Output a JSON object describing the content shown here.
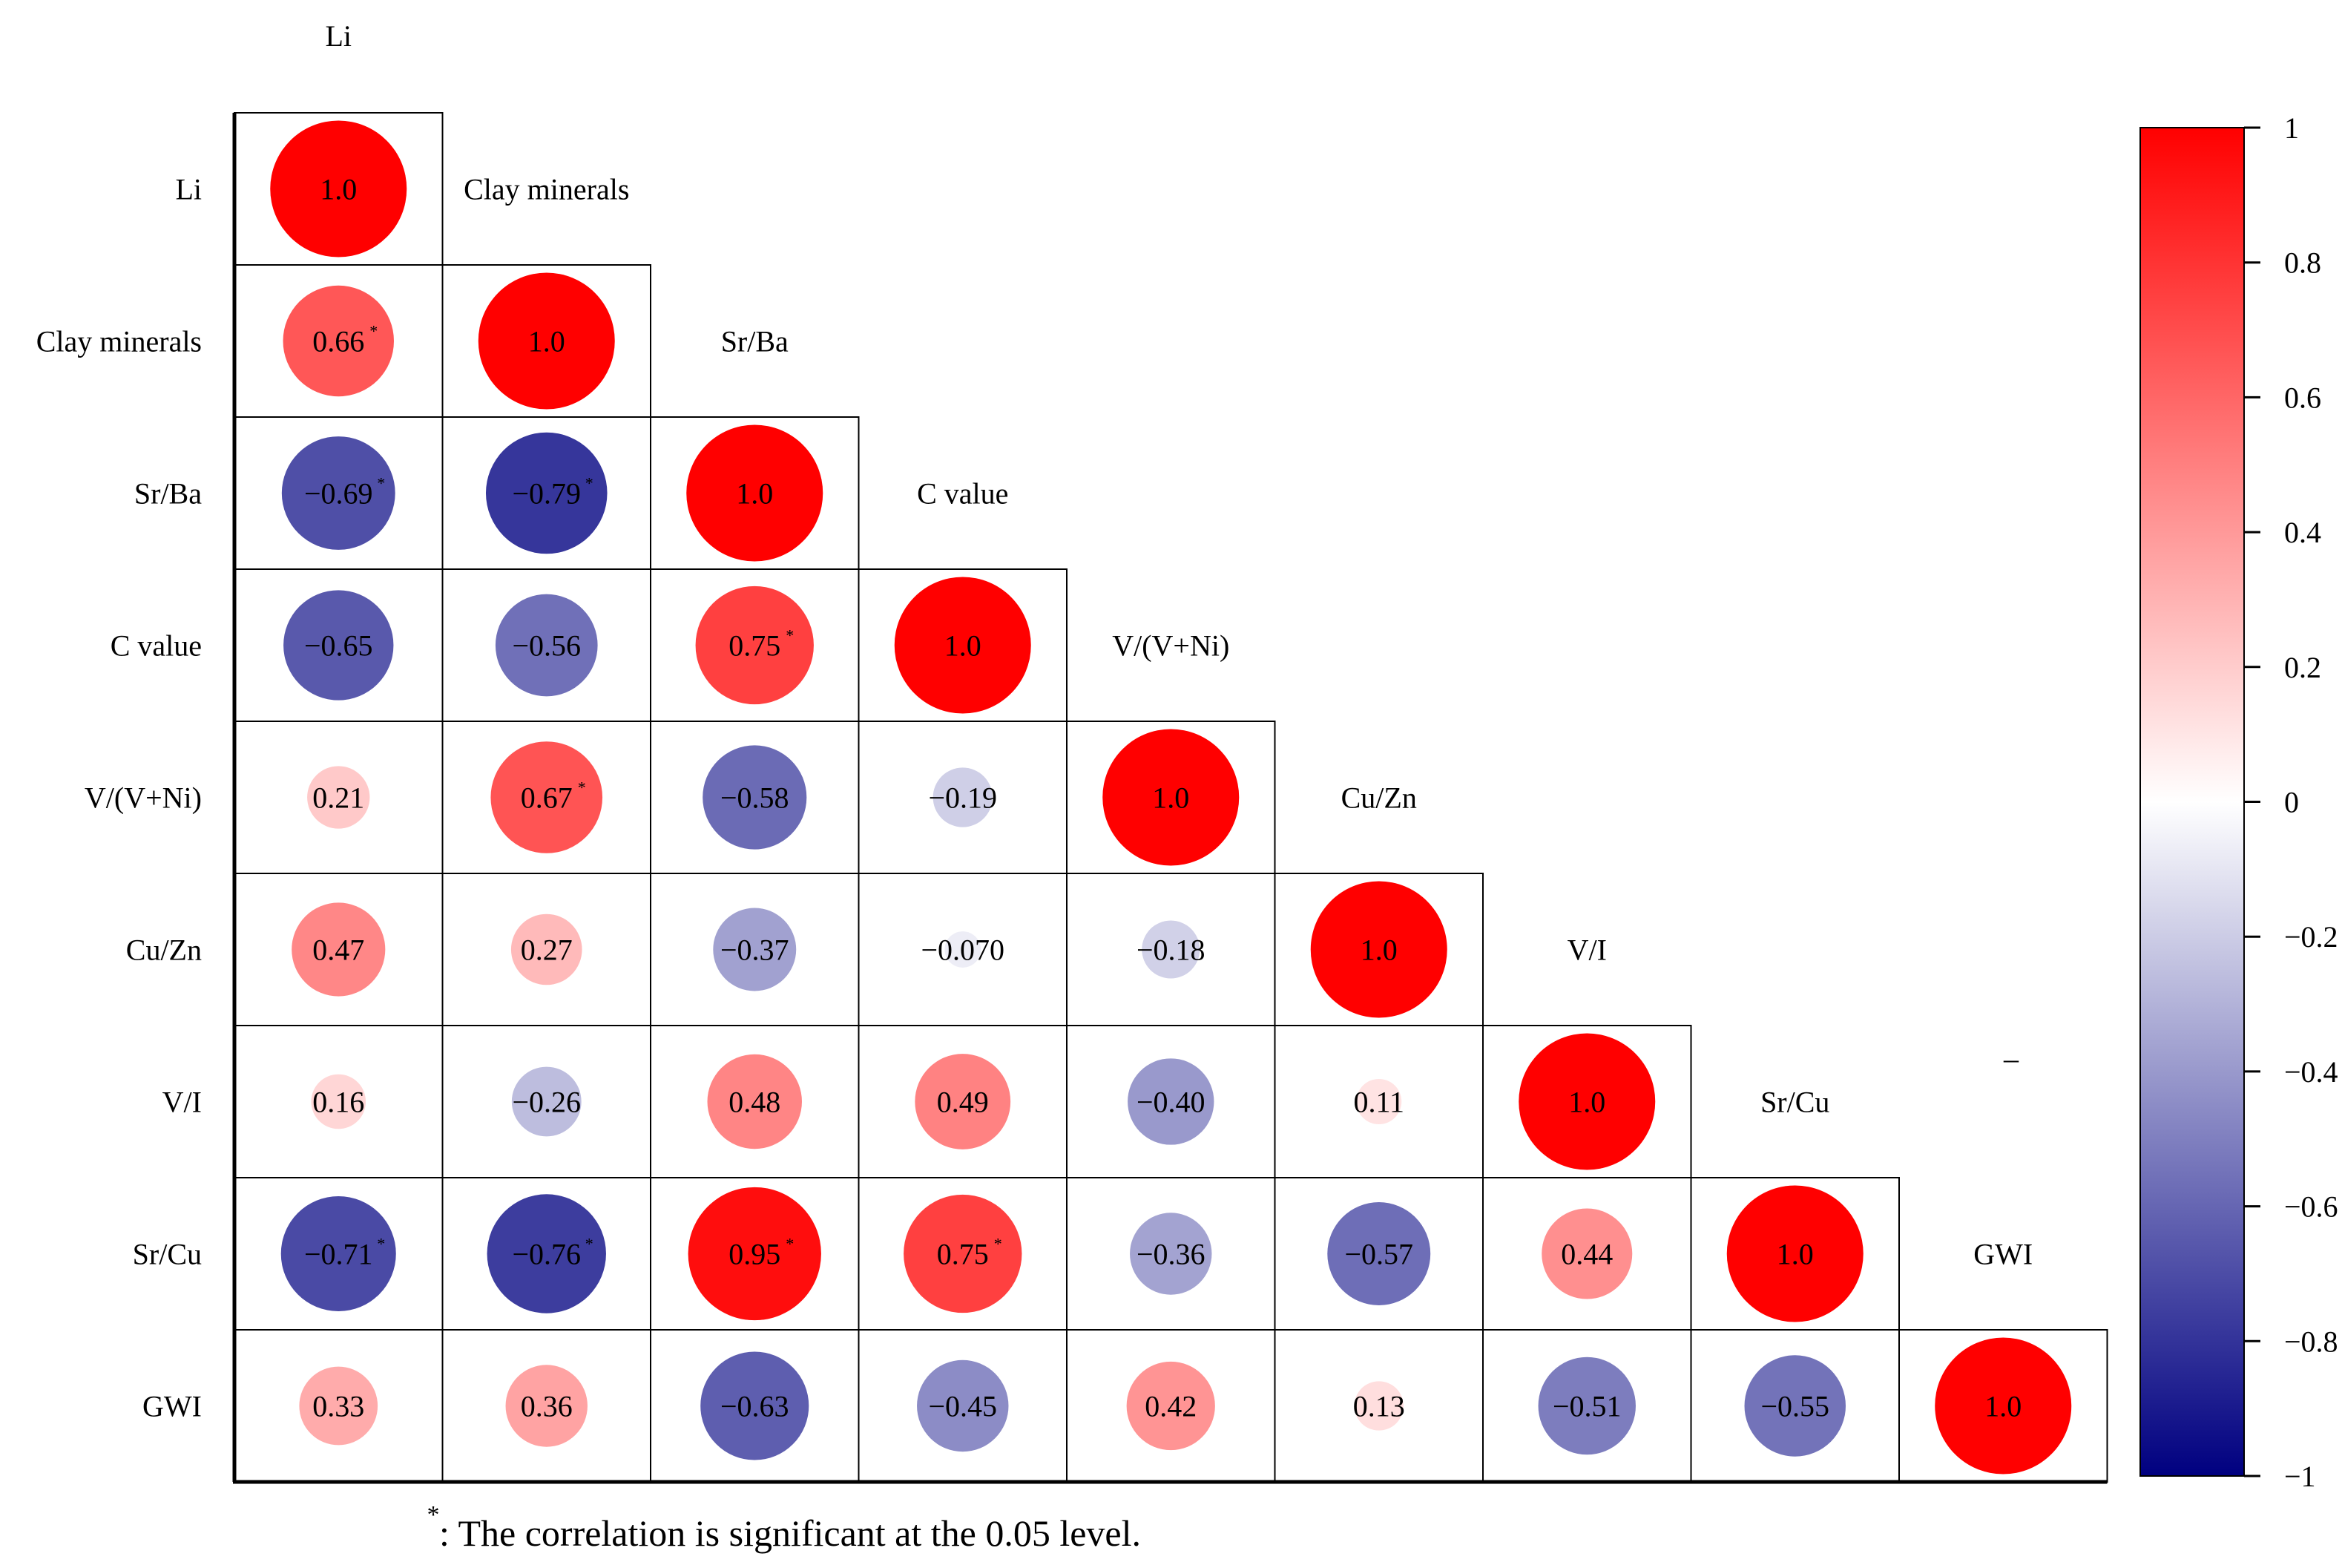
{
  "chart_data": {
    "type": "heatmap",
    "style": "lower-triangular circle correlation matrix",
    "variables": [
      "Li",
      "Clay minerals",
      "Sr/Ba",
      "C value",
      "V/(V+Ni)",
      "Cu/Zn",
      "V/I",
      "Sr/Cu",
      "GWI"
    ],
    "cells": [
      {
        "row": 0,
        "col": 0,
        "value": 1.0,
        "label": "1.0",
        "sig": false
      },
      {
        "row": 1,
        "col": 0,
        "value": 0.66,
        "label": "0.66",
        "sig": true
      },
      {
        "row": 1,
        "col": 1,
        "value": 1.0,
        "label": "1.0",
        "sig": false
      },
      {
        "row": 2,
        "col": 0,
        "value": -0.69,
        "label": "−0.69",
        "sig": true
      },
      {
        "row": 2,
        "col": 1,
        "value": -0.79,
        "label": "−0.79",
        "sig": true
      },
      {
        "row": 2,
        "col": 2,
        "value": 1.0,
        "label": "1.0",
        "sig": false
      },
      {
        "row": 3,
        "col": 0,
        "value": -0.65,
        "label": "−0.65",
        "sig": false
      },
      {
        "row": 3,
        "col": 1,
        "value": -0.56,
        "label": "−0.56",
        "sig": false
      },
      {
        "row": 3,
        "col": 2,
        "value": 0.75,
        "label": "0.75",
        "sig": true
      },
      {
        "row": 3,
        "col": 3,
        "value": 1.0,
        "label": "1.0",
        "sig": false
      },
      {
        "row": 4,
        "col": 0,
        "value": 0.21,
        "label": "0.21",
        "sig": false
      },
      {
        "row": 4,
        "col": 1,
        "value": 0.67,
        "label": "0.67",
        "sig": true
      },
      {
        "row": 4,
        "col": 2,
        "value": -0.58,
        "label": "−0.58",
        "sig": false
      },
      {
        "row": 4,
        "col": 3,
        "value": -0.19,
        "label": "−0.19",
        "sig": false
      },
      {
        "row": 4,
        "col": 4,
        "value": 1.0,
        "label": "1.0",
        "sig": false
      },
      {
        "row": 5,
        "col": 0,
        "value": 0.47,
        "label": "0.47",
        "sig": false
      },
      {
        "row": 5,
        "col": 1,
        "value": 0.27,
        "label": "0.27",
        "sig": false
      },
      {
        "row": 5,
        "col": 2,
        "value": -0.37,
        "label": "−0.37",
        "sig": false
      },
      {
        "row": 5,
        "col": 3,
        "value": -0.07,
        "label": "−0.070",
        "sig": false
      },
      {
        "row": 5,
        "col": 4,
        "value": -0.18,
        "label": "−0.18",
        "sig": false
      },
      {
        "row": 5,
        "col": 5,
        "value": 1.0,
        "label": "1.0",
        "sig": false
      },
      {
        "row": 6,
        "col": 0,
        "value": 0.16,
        "label": "0.16",
        "sig": false
      },
      {
        "row": 6,
        "col": 1,
        "value": -0.26,
        "label": "−0.26",
        "sig": false
      },
      {
        "row": 6,
        "col": 2,
        "value": 0.48,
        "label": "0.48",
        "sig": false
      },
      {
        "row": 6,
        "col": 3,
        "value": 0.49,
        "label": "0.49",
        "sig": false
      },
      {
        "row": 6,
        "col": 4,
        "value": -0.4,
        "label": "−0.40",
        "sig": false
      },
      {
        "row": 6,
        "col": 5,
        "value": 0.11,
        "label": "0.11",
        "sig": false
      },
      {
        "row": 6,
        "col": 6,
        "value": 1.0,
        "label": "1.0",
        "sig": false
      },
      {
        "row": 7,
        "col": 0,
        "value": -0.71,
        "label": "−0.71",
        "sig": true
      },
      {
        "row": 7,
        "col": 1,
        "value": -0.76,
        "label": "−0.76",
        "sig": true
      },
      {
        "row": 7,
        "col": 2,
        "value": 0.95,
        "label": "0.95",
        "sig": true
      },
      {
        "row": 7,
        "col": 3,
        "value": 0.75,
        "label": "0.75",
        "sig": true
      },
      {
        "row": 7,
        "col": 4,
        "value": -0.36,
        "label": "−0.36",
        "sig": false
      },
      {
        "row": 7,
        "col": 5,
        "value": -0.57,
        "label": "−0.57",
        "sig": false
      },
      {
        "row": 7,
        "col": 6,
        "value": 0.44,
        "label": "0.44",
        "sig": false
      },
      {
        "row": 7,
        "col": 7,
        "value": 1.0,
        "label": "1.0",
        "sig": false
      },
      {
        "row": 8,
        "col": 0,
        "value": 0.33,
        "label": "0.33",
        "sig": false
      },
      {
        "row": 8,
        "col": 1,
        "value": 0.36,
        "label": "0.36",
        "sig": false
      },
      {
        "row": 8,
        "col": 2,
        "value": -0.63,
        "label": "−0.63",
        "sig": false
      },
      {
        "row": 8,
        "col": 3,
        "value": -0.45,
        "label": "−0.45",
        "sig": false
      },
      {
        "row": 8,
        "col": 4,
        "value": 0.42,
        "label": "0.42",
        "sig": false
      },
      {
        "row": 8,
        "col": 5,
        "value": 0.13,
        "label": "0.13",
        "sig": false
      },
      {
        "row": 8,
        "col": 6,
        "value": -0.51,
        "label": "−0.51",
        "sig": false
      },
      {
        "row": 8,
        "col": 7,
        "value": -0.55,
        "label": "−0.55",
        "sig": false
      },
      {
        "row": 8,
        "col": 8,
        "value": 1.0,
        "label": "1.0",
        "sig": false
      }
    ],
    "colorbar": {
      "range": [
        -1,
        1
      ],
      "ticks": [
        1,
        0.8,
        0.6,
        0.4,
        0.2,
        0,
        -0.2,
        -0.4,
        -0.6,
        -0.8,
        -1
      ],
      "tick_labels": [
        "1",
        "0.8",
        "0.6",
        "0.4",
        "0.2",
        "0",
        "−0.2",
        "−0.4",
        "−0.6",
        "−0.8",
        "−1"
      ],
      "colors": {
        "positive": "#ff0000",
        "neutral": "#ffffff",
        "negative": "#000080"
      }
    },
    "sig_marker": "*",
    "dash_mark": "–",
    "footnote": ": The correlation is significant at the 0.05 level."
  }
}
